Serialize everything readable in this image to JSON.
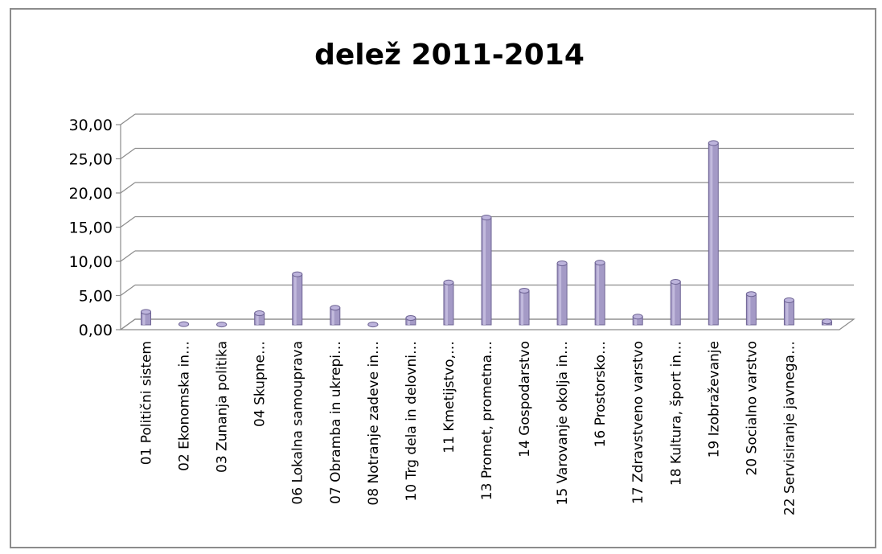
{
  "chart_data": {
    "type": "bar",
    "title": "delež 2011-2014",
    "xlabel": "",
    "ylabel": "",
    "ylim": [
      0,
      30
    ],
    "y_ticks": [
      "0,00",
      "5,00",
      "10,00",
      "15,00",
      "20,00",
      "25,00",
      "30,00"
    ],
    "grid": true,
    "legend": "none",
    "bar_color": "#a49ac6",
    "categories": [
      "01 Politični sistem",
      "02 Ekonomska in…",
      "03 Zunanja politika",
      "04 Skupne…",
      "06 Lokalna samouprava",
      "07 Obramba in ukrepi…",
      "08 Notranje zadeve in…",
      "10 Trg dela in delovni…",
      "11 Kmetijstvo,…",
      "13 Promet, prometna…",
      "14 Gospodarstvo",
      "15 Varovanje okolja in…",
      "16 Prostorsko…",
      "17 Zdravstveno varstvo",
      "18 Kultura, šport in…",
      "19 Izobraževanje",
      "20 Socialno varstvo",
      "22 Servisiranje javnega…",
      ""
    ],
    "values": [
      1.9,
      0.1,
      0.05,
      1.7,
      7.4,
      2.5,
      0.05,
      1.0,
      6.2,
      15.7,
      5.0,
      9.0,
      9.1,
      1.2,
      6.3,
      26.6,
      4.5,
      3.6,
      0.5
    ]
  }
}
